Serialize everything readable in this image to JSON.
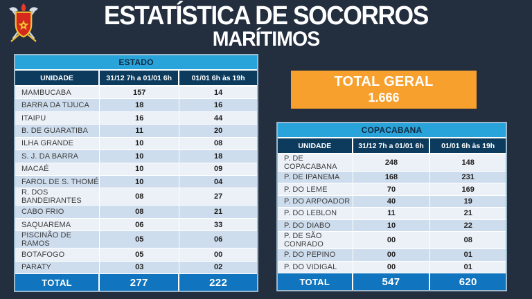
{
  "header": {
    "title_line1": "ESTATÍSTICA DE SOCORROS",
    "title_line2": "MARÍTIMOS",
    "logo_icon": "fire-brigade-crest"
  },
  "total_geral": {
    "label": "TOTAL GERAL",
    "value": "1.666"
  },
  "tables": {
    "estado": {
      "title": "ESTADO",
      "columns": [
        "UNIDADE",
        "31/12 7h a 01/01 6h",
        "01/01 6h às 19h"
      ],
      "rows": [
        [
          "MAMBUCABA",
          "157",
          "14"
        ],
        [
          "BARRA DA TIJUCA",
          "18",
          "16"
        ],
        [
          "ITAIPU",
          "16",
          "44"
        ],
        [
          "B. DE GUARATIBA",
          "11",
          "20"
        ],
        [
          "ILHA GRANDE",
          "10",
          "08"
        ],
        [
          "S. J. DA BARRA",
          "10",
          "18"
        ],
        [
          "MACAÉ",
          "10",
          "09"
        ],
        [
          "FAROL DE S. THOMÉ",
          "10",
          "04"
        ],
        [
          "R. DOS BANDEIRANTES",
          "08",
          "27"
        ],
        [
          "CABO FRIO",
          "08",
          "21"
        ],
        [
          "SAQUAREMA",
          "06",
          "33"
        ],
        [
          "PISCINÃO DE RAMOS",
          "05",
          "06"
        ],
        [
          "BOTAFOGO",
          "05",
          "00"
        ],
        [
          "PARATY",
          "03",
          "02"
        ]
      ],
      "total": [
        "TOTAL",
        "277",
        "222"
      ]
    },
    "copacabana": {
      "title": "COPACABANA",
      "columns": [
        "UNIDADE",
        "31/12 7h a 01/01 6h",
        "01/01 6h às 19h"
      ],
      "rows": [
        [
          "P. DE COPACABANA",
          "248",
          "148"
        ],
        [
          "P. DE IPANEMA",
          "168",
          "231"
        ],
        [
          "P. DO LEME",
          "70",
          "169"
        ],
        [
          "P. DO ARPOADOR",
          "40",
          "19"
        ],
        [
          "P. DO LEBLON",
          "11",
          "21"
        ],
        [
          "P. DO DIABO",
          "10",
          "22"
        ],
        [
          "P. DE SÃO CONRADO",
          "00",
          "08"
        ],
        [
          "P. DO PEPINO",
          "00",
          "01"
        ],
        [
          "P. DO VIDIGAL",
          "00",
          "01"
        ]
      ],
      "total": [
        "TOTAL",
        "547",
        "620"
      ]
    }
  },
  "colors": {
    "background": "#232e3f",
    "table_title_bar": "#29a4da",
    "table_header_row": "#0c3b5d",
    "table_total_row": "#1074be",
    "total_geral_bg": "#f7a02e",
    "row_light": "#ecf1f8",
    "row_alt": "#cedded",
    "crest_red": "#d6291e",
    "crest_gold": "#f2c230"
  }
}
